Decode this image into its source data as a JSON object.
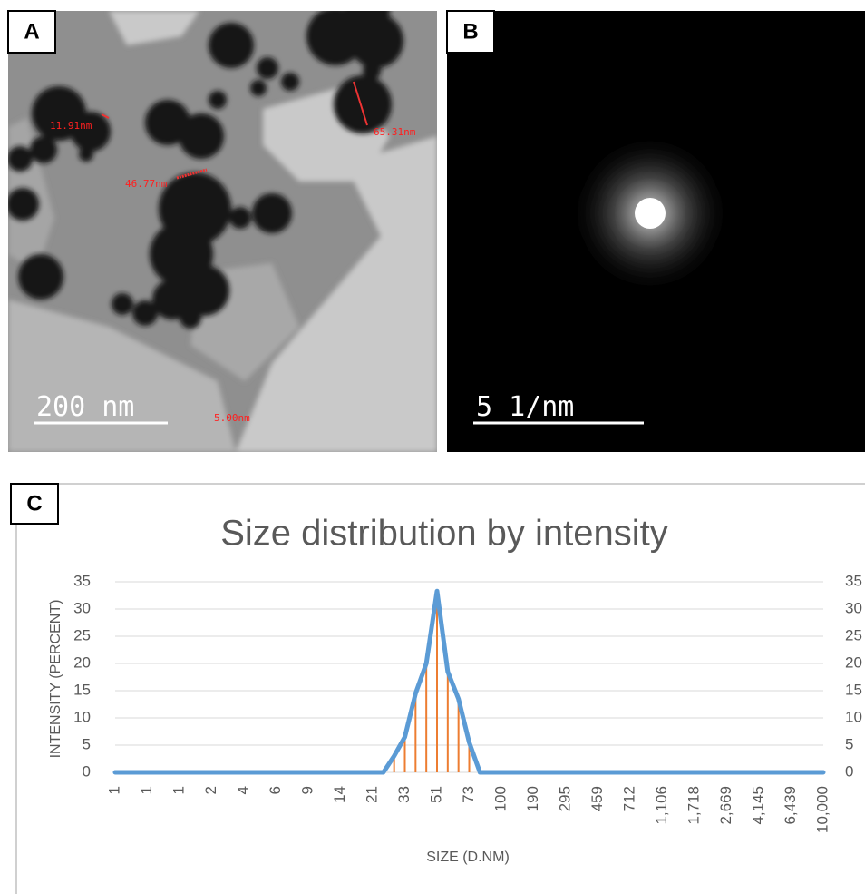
{
  "panels": [
    {
      "label": "A",
      "annotations": [
        "11.91nm",
        "65.31nm",
        "46.77nm",
        "5.00nm"
      ],
      "scale_bar": "200 nm"
    },
    {
      "label": "B",
      "scale_bar": "5 1/nm"
    },
    {
      "label": "C"
    }
  ],
  "chart_data": {
    "type": "line",
    "title": "Size distribution by intensity",
    "y_axis_label": "INTENSITY (PERCENT)",
    "x_axis_label": "SIZE (D.NM)",
    "categories": [
      "1",
      null,
      null,
      "1",
      null,
      null,
      "1",
      null,
      null,
      "2",
      null,
      null,
      "4",
      null,
      null,
      "6",
      null,
      null,
      "9",
      null,
      null,
      "14",
      null,
      null,
      "21",
      null,
      null,
      "33",
      null,
      null,
      "51",
      null,
      null,
      "73",
      null,
      null,
      "100",
      null,
      null,
      "190",
      null,
      null,
      "295",
      null,
      null,
      "459",
      null,
      null,
      "712",
      null,
      null,
      "1,106",
      null,
      null,
      "1,718",
      null,
      null,
      "2,669",
      null,
      null,
      "4,145",
      null,
      null,
      "6,439",
      null,
      null,
      "10,000"
    ],
    "values": [
      0,
      0,
      0,
      0,
      0,
      0,
      0,
      0,
      0,
      0,
      0,
      0,
      0,
      0,
      0,
      0,
      0,
      0,
      0,
      0,
      0,
      0,
      0,
      0,
      0,
      0,
      3,
      6.5,
      14.5,
      20,
      33.3,
      18.5,
      13.5,
      5.5,
      0,
      0,
      0,
      0,
      0,
      0,
      0,
      0,
      0,
      0,
      0,
      0,
      0,
      0,
      0,
      0,
      0,
      0,
      0,
      0,
      0,
      0,
      0,
      0,
      0,
      0,
      0,
      0,
      0,
      0,
      0,
      0,
      0
    ],
    "color": "#5b9bd5",
    "drop_line_color": "#ed7d31",
    "ylim": [
      0,
      35
    ],
    "yticks": [
      0,
      5,
      10,
      15,
      20,
      25,
      30,
      35
    ],
    "y2lim": [
      0,
      35
    ],
    "y2ticks": [
      0,
      5,
      10,
      15,
      20,
      25,
      30,
      35
    ],
    "grid": true
  }
}
